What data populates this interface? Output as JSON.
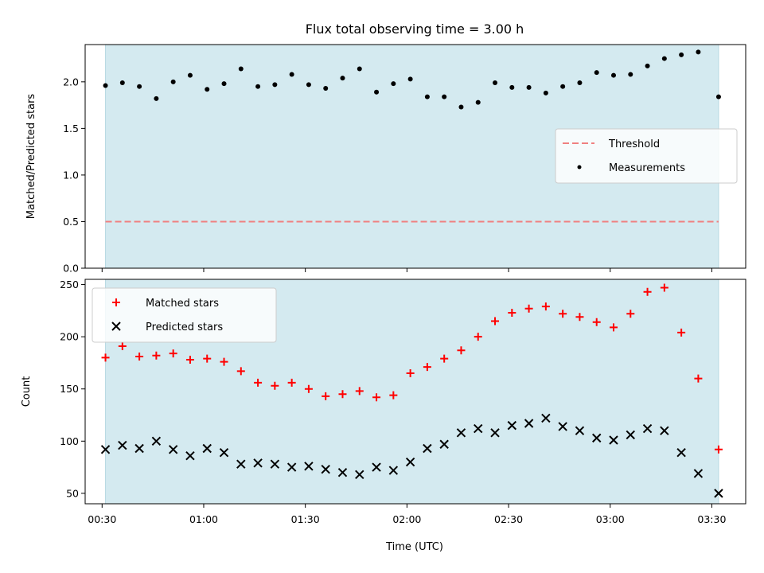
{
  "figure": {
    "title": "Flux total observing time = 3.00 h",
    "xlabel": "Time (UTC)",
    "x_tick_labels": [
      "00:30",
      "01:00",
      "01:30",
      "02:00",
      "02:30",
      "03:00",
      "03:30"
    ],
    "shaded_span_color": "#d4eaf0"
  },
  "chart_data": [
    {
      "type": "scatter",
      "ylabel": "Matched/Predicted stars",
      "ylim": [
        0,
        2.4
      ],
      "y_ticks": [
        "0.0",
        "0.5",
        "1.0",
        "1.5",
        "2.0"
      ],
      "x_time_range": [
        "00:25",
        "03:40"
      ],
      "shaded_span": [
        "00:31",
        "03:32"
      ],
      "threshold": {
        "label": "Threshold",
        "value": 0.5,
        "color": "#f08080",
        "style": "dashed"
      },
      "series": [
        {
          "name": "Measurements",
          "color": "#000000",
          "marker": "dot",
          "x": [
            "00:31",
            "00:36",
            "00:41",
            "00:46",
            "00:51",
            "00:56",
            "01:01",
            "01:06",
            "01:11",
            "01:16",
            "01:21",
            "01:26",
            "01:31",
            "01:36",
            "01:41",
            "01:46",
            "01:51",
            "01:56",
            "02:01",
            "02:06",
            "02:11",
            "02:16",
            "02:21",
            "02:26",
            "02:31",
            "02:36",
            "02:41",
            "02:46",
            "02:51",
            "02:56",
            "03:01",
            "03:06",
            "03:11",
            "03:16",
            "03:21",
            "03:26",
            "03:32"
          ],
          "y": [
            1.96,
            1.99,
            1.95,
            1.82,
            2.0,
            2.07,
            1.92,
            1.98,
            2.14,
            1.95,
            1.97,
            2.08,
            1.97,
            1.93,
            2.04,
            2.14,
            1.89,
            1.98,
            2.03,
            1.84,
            1.84,
            1.73,
            1.78,
            1.99,
            1.94,
            1.94,
            1.88,
            1.95,
            1.99,
            2.1,
            2.07,
            2.08,
            2.17,
            2.25,
            2.29,
            2.32,
            1.84
          ]
        }
      ],
      "legend": {
        "placement": "center-right",
        "entries": [
          "Threshold",
          "Measurements"
        ]
      }
    },
    {
      "type": "scatter",
      "ylabel": "Count",
      "ylim": [
        40,
        255
      ],
      "y_ticks": [
        "50",
        "100",
        "150",
        "200",
        "250"
      ],
      "x_time_range": [
        "00:25",
        "03:40"
      ],
      "shaded_span": [
        "00:31",
        "03:32"
      ],
      "series": [
        {
          "name": "Matched stars",
          "color": "#ff0000",
          "marker": "plus",
          "x": [
            "00:31",
            "00:36",
            "00:41",
            "00:46",
            "00:51",
            "00:56",
            "01:01",
            "01:06",
            "01:11",
            "01:16",
            "01:21",
            "01:26",
            "01:31",
            "01:36",
            "01:41",
            "01:46",
            "01:51",
            "01:56",
            "02:01",
            "02:06",
            "02:11",
            "02:16",
            "02:21",
            "02:26",
            "02:31",
            "02:36",
            "02:41",
            "02:46",
            "02:51",
            "02:56",
            "03:01",
            "03:06",
            "03:11",
            "03:16",
            "03:21",
            "03:26",
            "03:32"
          ],
          "y": [
            180,
            191,
            181,
            182,
            184,
            178,
            179,
            176,
            167,
            156,
            153,
            156,
            150,
            143,
            145,
            148,
            142,
            144,
            165,
            171,
            179,
            187,
            200,
            215,
            223,
            227,
            229,
            222,
            219,
            214,
            209,
            222,
            243,
            247,
            204,
            160,
            92
          ]
        },
        {
          "name": "Predicted stars",
          "color": "#000000",
          "marker": "x",
          "x": [
            "00:31",
            "00:36",
            "00:41",
            "00:46",
            "00:51",
            "00:56",
            "01:01",
            "01:06",
            "01:11",
            "01:16",
            "01:21",
            "01:26",
            "01:31",
            "01:36",
            "01:41",
            "01:46",
            "01:51",
            "01:56",
            "02:01",
            "02:06",
            "02:11",
            "02:16",
            "02:21",
            "02:26",
            "02:31",
            "02:36",
            "02:41",
            "02:46",
            "02:51",
            "02:56",
            "03:01",
            "03:06",
            "03:11",
            "03:16",
            "03:21",
            "03:26",
            "03:32"
          ],
          "y": [
            92,
            96,
            93,
            100,
            92,
            86,
            93,
            89,
            78,
            79,
            78,
            75,
            76,
            73,
            70,
            68,
            75,
            72,
            80,
            93,
            97,
            108,
            112,
            108,
            115,
            117,
            122,
            114,
            110,
            103,
            101,
            106,
            112,
            110,
            89,
            69,
            50
          ]
        }
      ],
      "legend": {
        "placement": "top-left",
        "entries": [
          "Matched stars",
          "Predicted stars"
        ]
      }
    }
  ]
}
